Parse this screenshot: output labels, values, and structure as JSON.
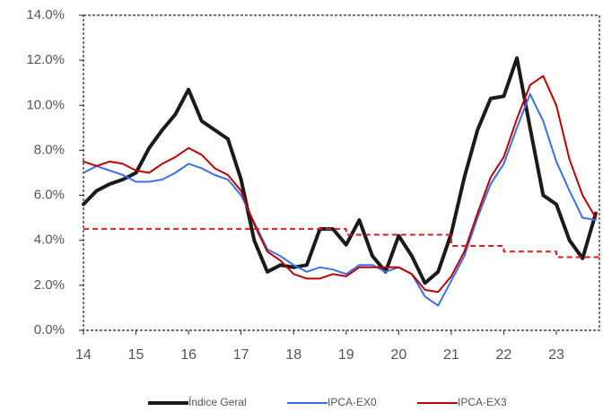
{
  "chart_data": {
    "type": "line",
    "x": [
      14,
      14.25,
      14.5,
      14.75,
      15,
      15.25,
      15.5,
      15.75,
      16,
      16.25,
      16.5,
      16.75,
      17,
      17.25,
      17.5,
      17.75,
      18,
      18.25,
      18.5,
      18.75,
      19,
      19.25,
      19.5,
      19.75,
      20,
      20.25,
      20.5,
      20.75,
      21,
      21.25,
      21.5,
      21.75,
      22,
      22.25,
      22.5,
      22.75,
      23,
      23.25,
      23.5,
      23.75
    ],
    "series": [
      {
        "name": "Índice Geral",
        "color": "#1a1a1a",
        "width": 4,
        "values": [
          5.6,
          6.2,
          6.5,
          6.7,
          7.0,
          8.1,
          8.9,
          9.6,
          10.7,
          9.3,
          8.9,
          8.5,
          6.7,
          4.0,
          2.6,
          2.9,
          2.8,
          2.9,
          4.5,
          4.5,
          3.8,
          4.9,
          3.3,
          2.6,
          4.2,
          3.3,
          2.1,
          2.6,
          4.3,
          6.8,
          8.9,
          10.3,
          10.4,
          12.1,
          9.0,
          6.0,
          5.6,
          4.0,
          3.2,
          5.2
        ]
      },
      {
        "name": "IPCA-EX0",
        "color": "#3a6fe8",
        "width": 2,
        "values": [
          7.0,
          7.3,
          7.1,
          6.9,
          6.6,
          6.6,
          6.7,
          7.0,
          7.4,
          7.2,
          6.9,
          6.7,
          6.0,
          4.8,
          3.6,
          3.3,
          2.9,
          2.6,
          2.8,
          2.7,
          2.5,
          2.9,
          2.9,
          2.6,
          2.8,
          2.5,
          1.5,
          1.1,
          2.2,
          3.3,
          5.0,
          6.5,
          7.4,
          9.0,
          10.5,
          9.3,
          7.5,
          6.2,
          5.0,
          4.9
        ]
      },
      {
        "name": "IPCA-EX3",
        "color": "#c00000",
        "width": 2,
        "values": [
          7.5,
          7.3,
          7.5,
          7.4,
          7.1,
          7.0,
          7.4,
          7.7,
          8.1,
          7.8,
          7.2,
          6.9,
          6.2,
          4.7,
          3.5,
          3.1,
          2.5,
          2.3,
          2.3,
          2.5,
          2.4,
          2.8,
          2.8,
          2.8,
          2.8,
          2.5,
          1.8,
          1.7,
          2.4,
          3.5,
          5.2,
          6.8,
          7.7,
          9.4,
          10.9,
          11.3,
          10.0,
          7.6,
          6.0,
          5.0
        ]
      },
      {
        "color": "#d42020",
        "width": 2,
        "dashed": true,
        "x": [
          14,
          19,
          19,
          21,
          21,
          22,
          22,
          23,
          23,
          23.82
        ],
        "values": [
          4.5,
          4.5,
          4.25,
          4.25,
          3.75,
          3.75,
          3.5,
          3.5,
          3.25,
          3.25
        ]
      }
    ],
    "xlim": [
      14,
      23.82
    ],
    "xticks": [
      14,
      15,
      16,
      17,
      18,
      19,
      20,
      21,
      22,
      23
    ],
    "ylim": [
      0,
      14
    ],
    "yticks": [
      {
        "value": 0,
        "label": "0.0%"
      },
      {
        "value": 2,
        "label": "2.0%"
      },
      {
        "value": 4,
        "label": "4.0%"
      },
      {
        "value": 6,
        "label": "6.0%"
      },
      {
        "value": 8,
        "label": "8.0%"
      },
      {
        "value": 10,
        "label": "10.0%"
      },
      {
        "value": 12,
        "label": "12.0%"
      },
      {
        "value": 14,
        "label": "14.0%"
      }
    ],
    "legend": "bottom"
  }
}
